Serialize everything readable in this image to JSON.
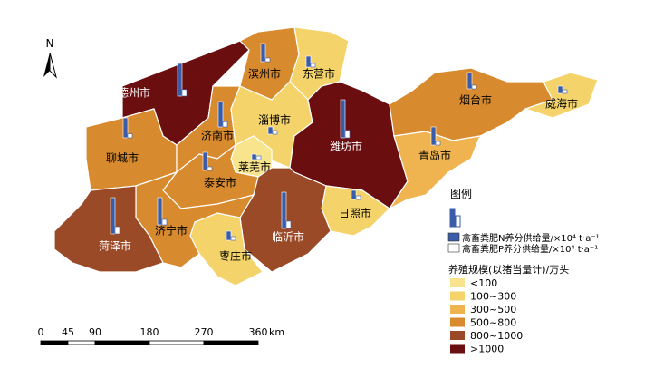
{
  "map": {
    "north": "N",
    "cities": [
      {
        "name": "德州市",
        "class": 5
      },
      {
        "name": "聊城市",
        "class": 3
      },
      {
        "name": "济南市",
        "class": 3
      },
      {
        "name": "滨州市",
        "class": 3
      },
      {
        "name": "东营市",
        "class": 1
      },
      {
        "name": "淄博市",
        "class": 1
      },
      {
        "name": "莱芜市",
        "class": 0
      },
      {
        "name": "泰安市",
        "class": 3
      },
      {
        "name": "潍坊市",
        "class": 5
      },
      {
        "name": "烟台市",
        "class": 3
      },
      {
        "name": "威海市",
        "class": 1
      },
      {
        "name": "青岛市",
        "class": 2
      },
      {
        "name": "日照市",
        "class": 1
      },
      {
        "name": "临沂市",
        "class": 4
      },
      {
        "name": "枣庄市",
        "class": 1
      },
      {
        "name": "济宁市",
        "class": 3
      },
      {
        "name": "菏泽市",
        "class": 4
      }
    ],
    "legend": {
      "title": "图例",
      "supply": [
        {
          "label": "禽畜粪肥N养分供给量/×10⁴ t·a⁻¹",
          "color": "#3b5ca8"
        },
        {
          "label": "禽畜粪肥P养分供给量/×10⁴ t·a⁻¹",
          "color": "#ffffff"
        }
      ],
      "scale_title": "养殖规模(以猪当量计)/万头",
      "classes": [
        {
          "label": "<100",
          "color": "#f8e48c"
        },
        {
          "label": "100~300",
          "color": "#f4d46a"
        },
        {
          "label": "300~500",
          "color": "#efb44f"
        },
        {
          "label": "500~800",
          "color": "#d88a2e"
        },
        {
          "label": "800~1000",
          "color": "#9b4a27"
        },
        {
          "label": ">1000",
          "color": "#6b0e10"
        }
      ]
    },
    "scale_bar": {
      "ticks": [
        0,
        45,
        90,
        180,
        270,
        360
      ],
      "unit": "km"
    }
  }
}
